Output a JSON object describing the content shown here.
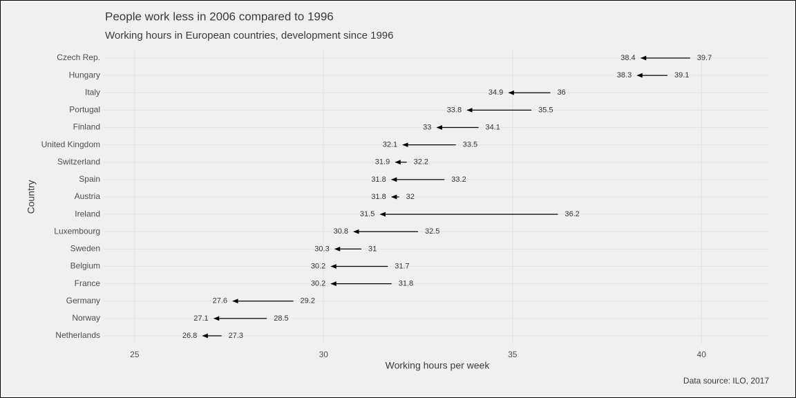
{
  "chart_data": {
    "type": "arrow",
    "title": "People work less in 2006 compared to 1996",
    "subtitle": "Working hours in European countries, development since 1996",
    "xlabel": "Working hours per week",
    "ylabel": "Country",
    "caption": "Data source: ILO, 2017",
    "categories": [
      "Czech Rep.",
      "Hungary",
      "Italy",
      "Portugal",
      "Finland",
      "United Kingdom",
      "Switzerland",
      "Spain",
      "Austria",
      "Ireland",
      "Luxembourg",
      "Sweden",
      "Belgium",
      "France",
      "Germany",
      "Norway",
      "Netherlands"
    ],
    "start": [
      39.7,
      39.1,
      36,
      35.5,
      34.1,
      33.5,
      32.2,
      33.2,
      32,
      36.2,
      32.5,
      31,
      31.7,
      31.8,
      29.2,
      28.5,
      27.3
    ],
    "end": [
      38.4,
      38.3,
      34.9,
      33.8,
      33,
      32.1,
      31.9,
      31.8,
      31.8,
      31.5,
      30.8,
      30.3,
      30.2,
      30.2,
      27.6,
      27.1,
      26.8
    ],
    "color": "#000000",
    "xlim": [
      24.18,
      41.77
    ],
    "xticks": [
      25,
      30,
      35,
      40
    ],
    "grid": true
  }
}
